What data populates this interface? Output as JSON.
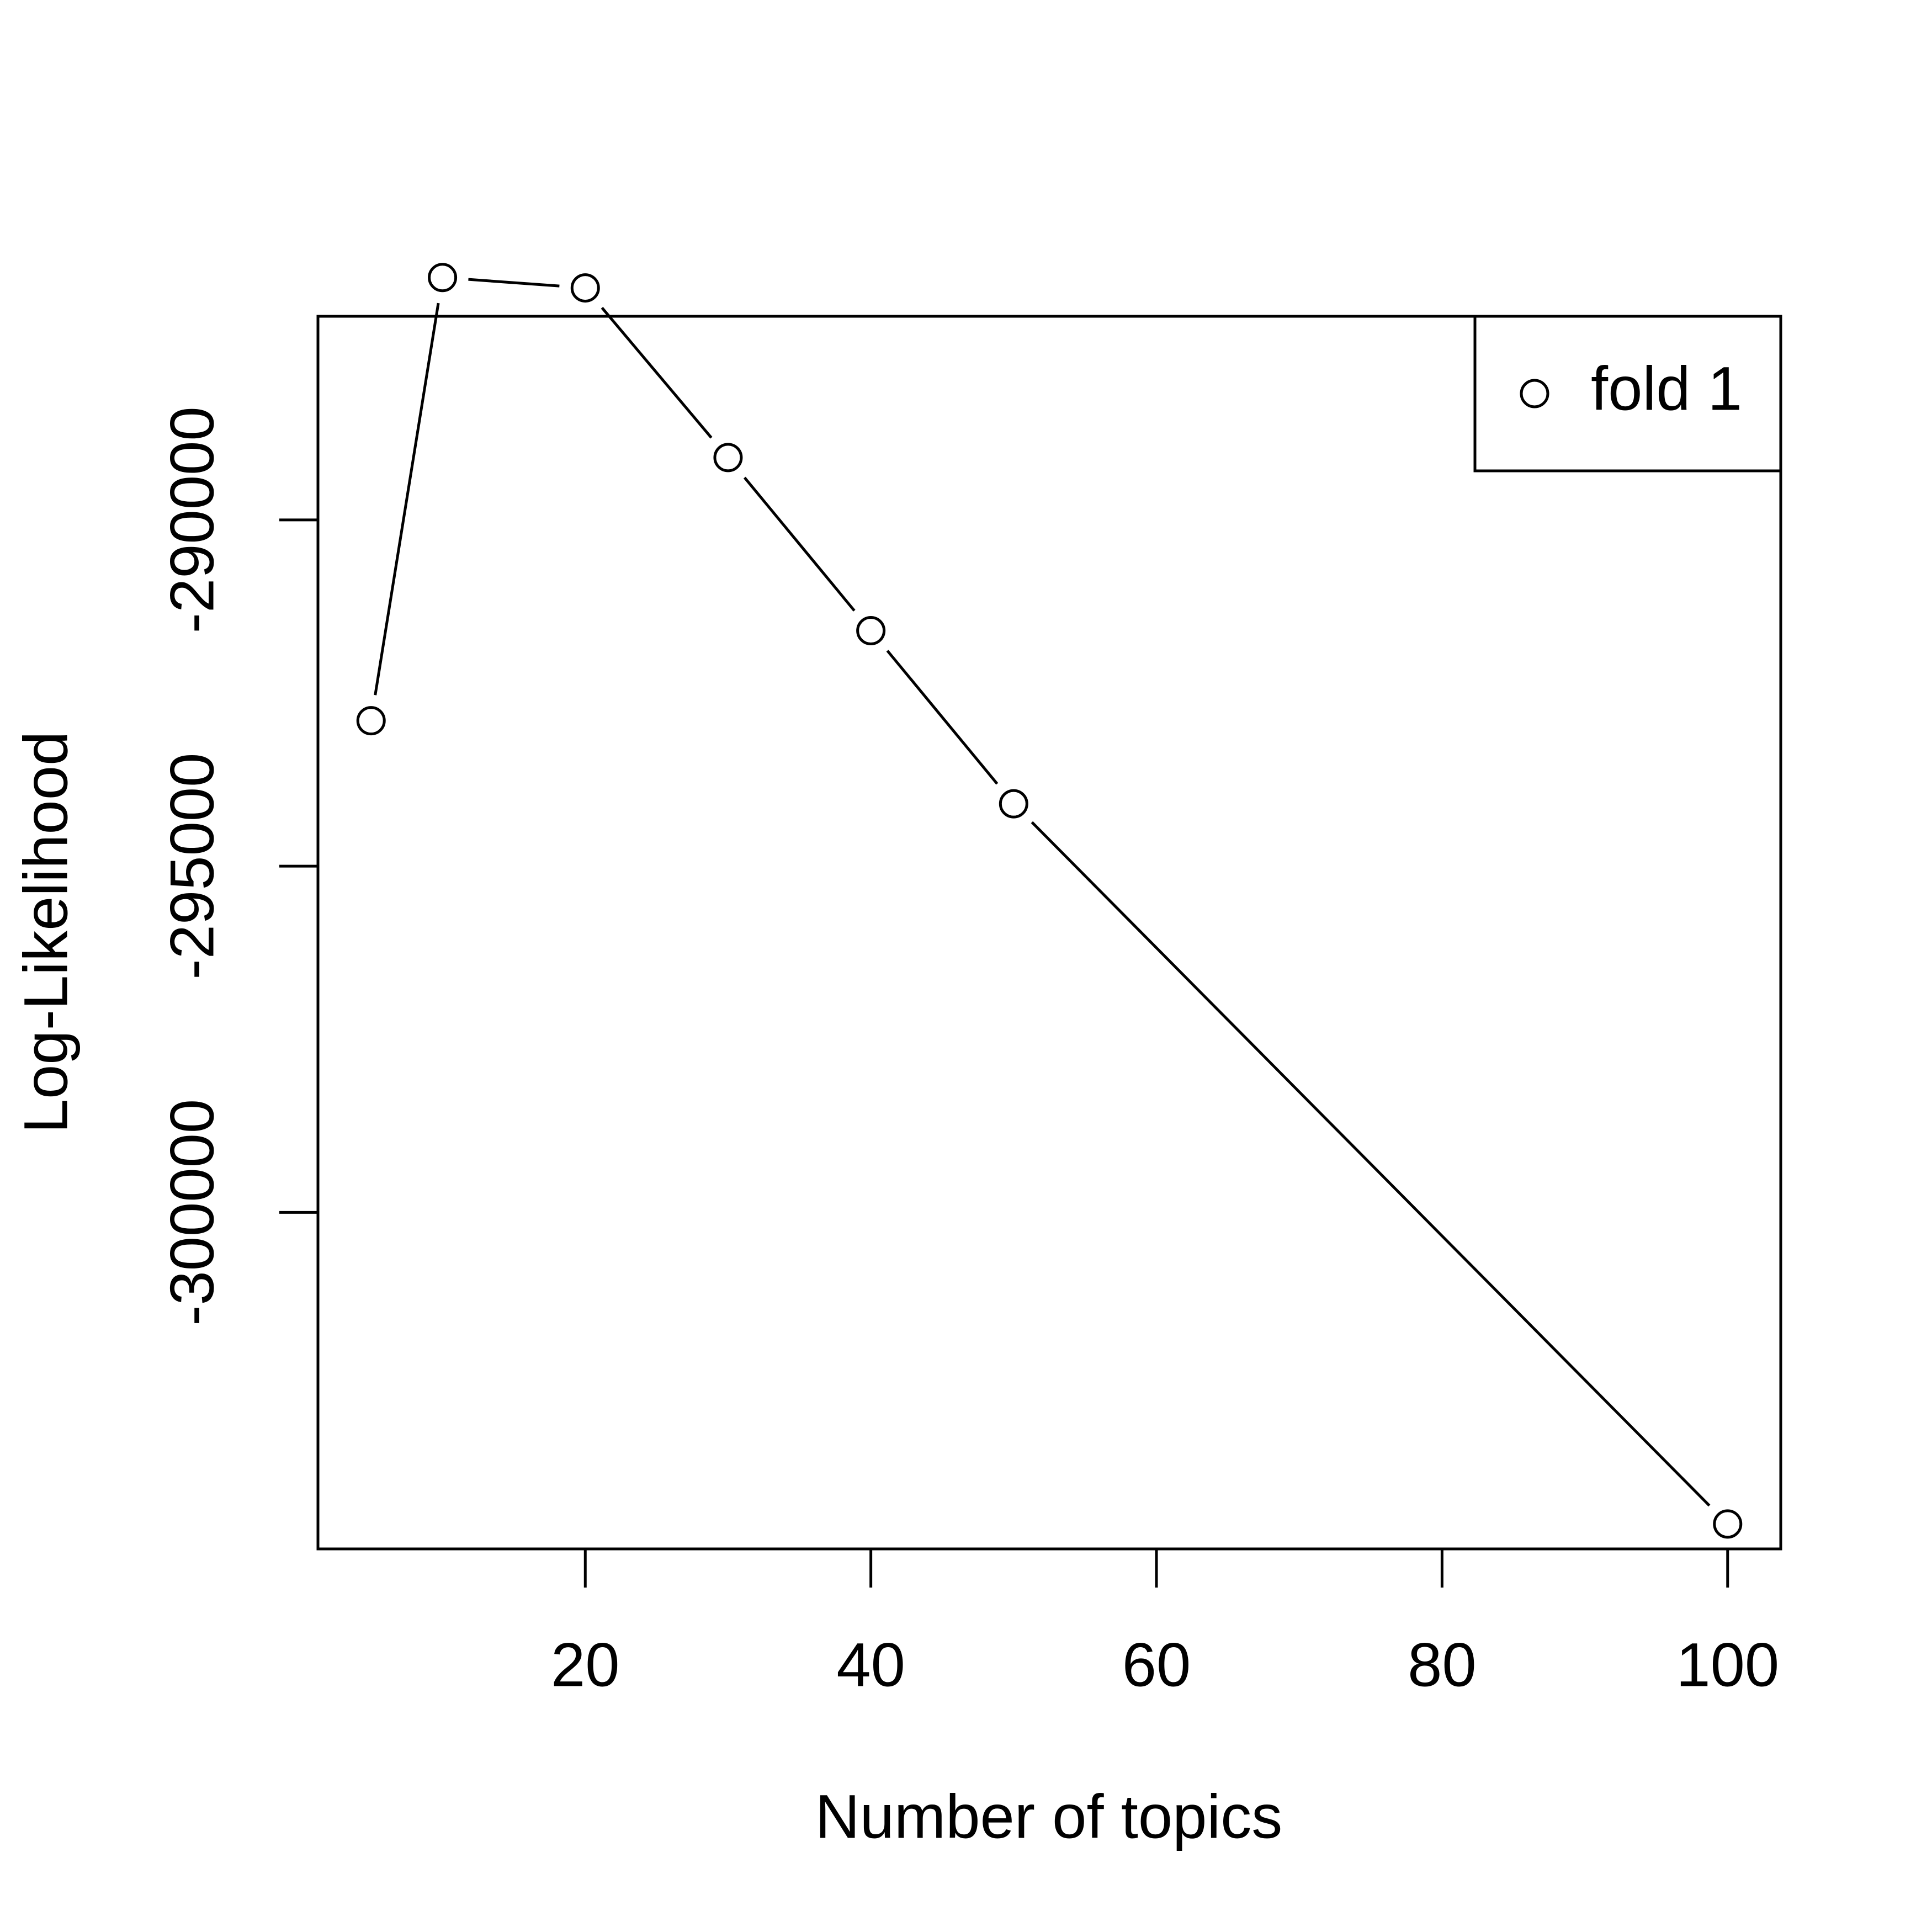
{
  "chart_data": {
    "type": "line",
    "xlabel": "Number of topics",
    "ylabel": "Log-Likelihood",
    "x": [
      5,
      10,
      20,
      30,
      40,
      50,
      100
    ],
    "series": [
      {
        "name": "fold 1",
        "values": [
          -292900,
          -286500,
          -286650,
          -289100,
          -291600,
          -294100,
          -304500
        ]
      }
    ],
    "xlim": [
      1.28,
      103.72
    ],
    "ylim": [
      -304860,
      -287060
    ],
    "xticks": [
      20,
      40,
      60,
      80,
      100
    ],
    "xtick_labels": [
      "20",
      "40",
      "60",
      "80",
      "100"
    ],
    "yticks": [
      -290000,
      -295000,
      -300000
    ],
    "ytick_labels": [
      "-290000",
      "-295000",
      "-300000"
    ],
    "grid": false,
    "legend_position": "top-right",
    "marker": "open-circle",
    "line_color": "#000000"
  }
}
